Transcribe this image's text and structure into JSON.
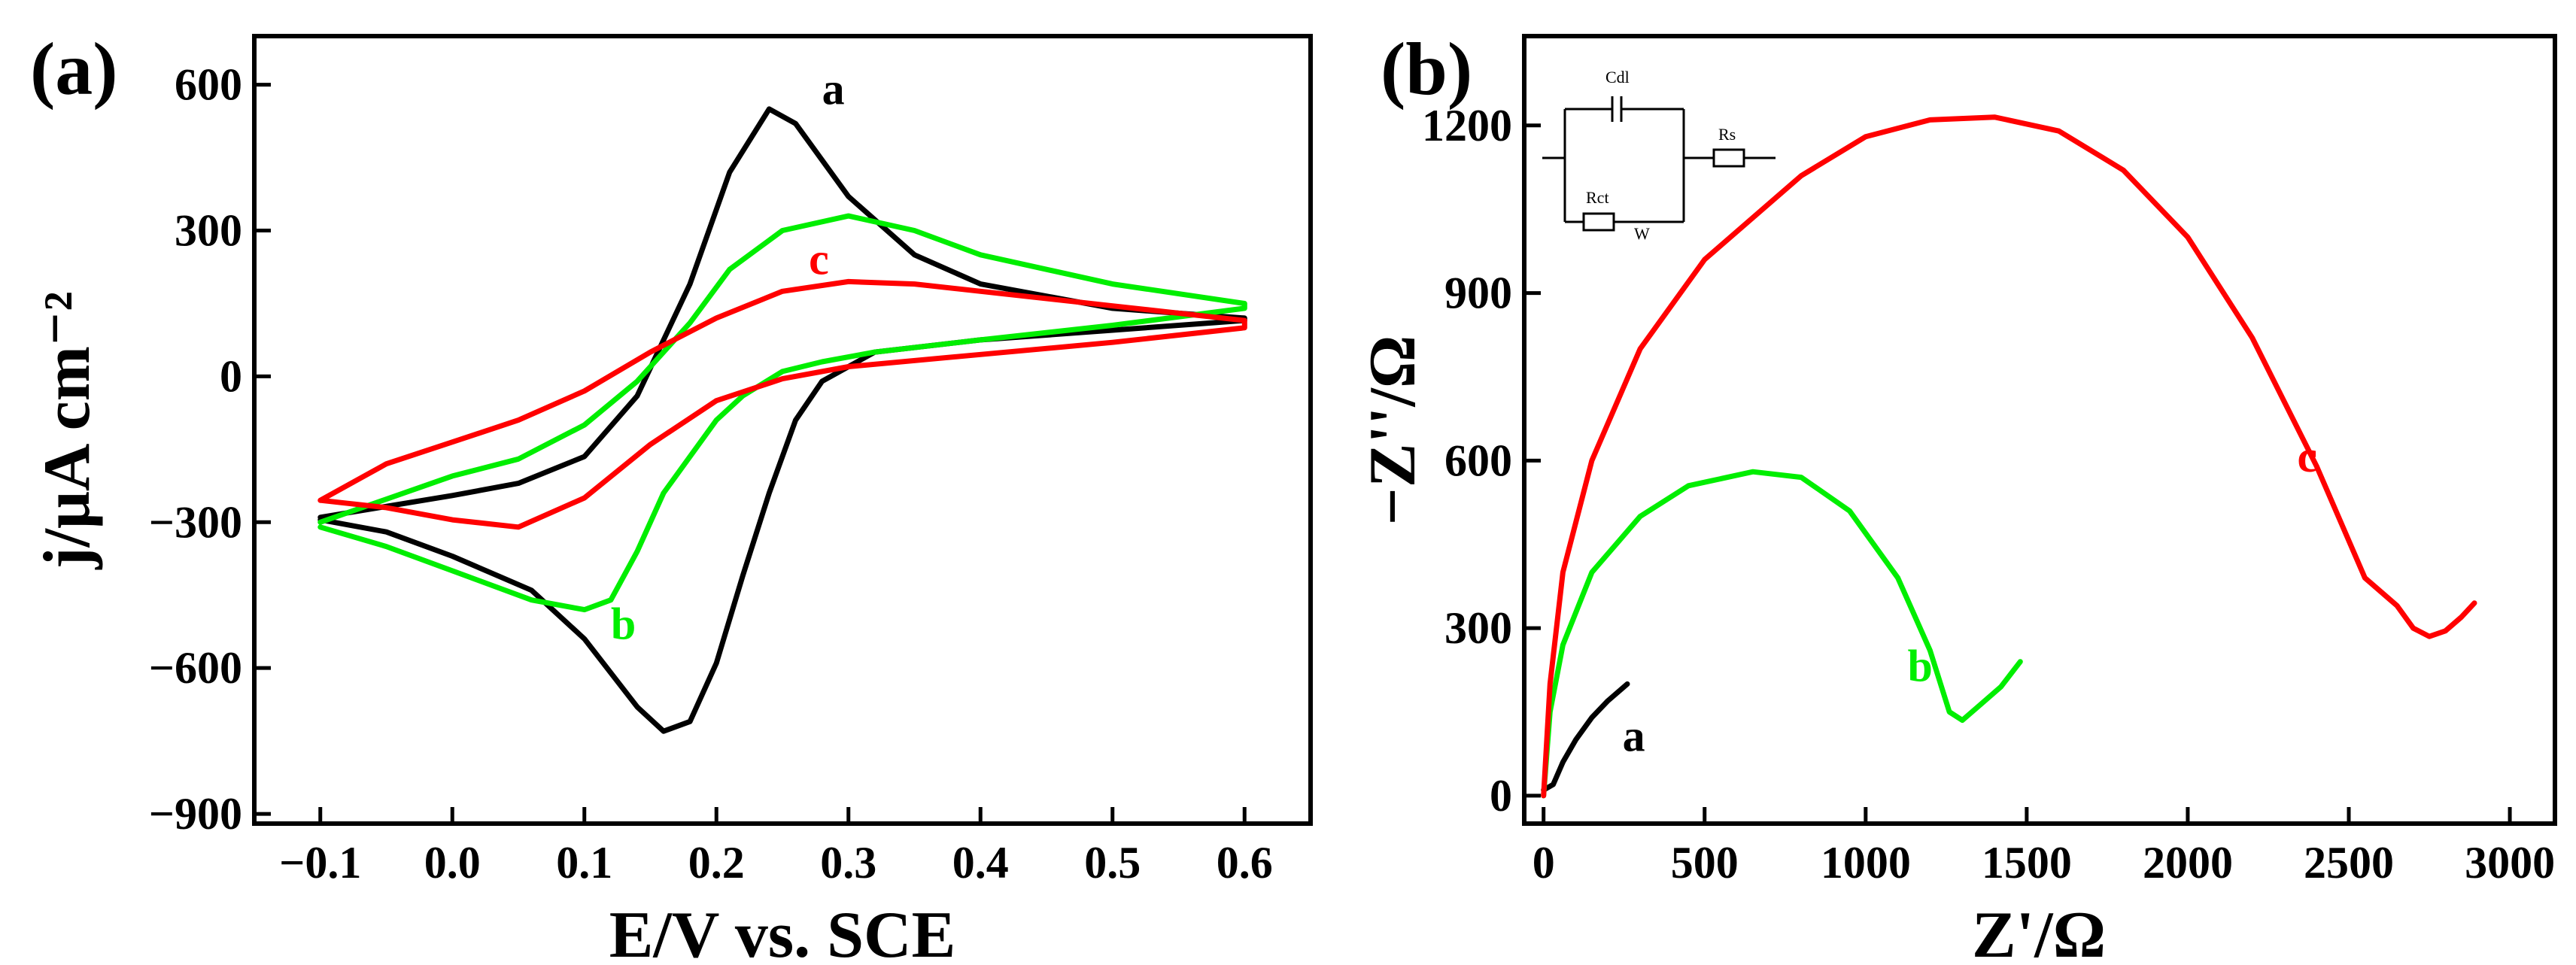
{
  "chart_data": [
    {
      "type": "line",
      "panel_label": "(a)",
      "xlabel": "E/V vs. SCE",
      "ylabel": "j/μA cm⁻²",
      "xlim": [
        -0.15,
        0.65
      ],
      "ylim": [
        -920,
        700
      ],
      "xticks": [
        -0.1,
        0.0,
        0.1,
        0.2,
        0.3,
        0.4,
        0.5,
        0.6
      ],
      "xtick_labels": [
        "−0.1",
        "0.0",
        "0.1",
        "0.2",
        "0.3",
        "0.4",
        "0.5",
        "0.6"
      ],
      "yticks": [
        -900,
        -600,
        -300,
        0,
        300,
        600
      ],
      "ytick_labels": [
        "−900",
        "−600",
        "−300",
        "0",
        "300",
        "600"
      ],
      "grid": false,
      "series": [
        {
          "name": "a",
          "color": "#000000",
          "label_at": [
            0.28,
            560
          ],
          "x": [
            -0.1,
            0.0,
            0.05,
            0.1,
            0.14,
            0.18,
            0.21,
            0.24,
            0.26,
            0.3,
            0.35,
            0.4,
            0.5,
            0.6,
            0.6,
            0.5,
            0.4,
            0.32,
            0.28,
            0.26,
            0.24,
            0.22,
            0.2,
            0.18,
            0.16,
            0.14,
            0.12,
            0.1,
            0.06,
            0.0,
            -0.05,
            -0.1
          ],
          "y": [
            -290,
            -245,
            -220,
            -165,
            -40,
            190,
            420,
            550,
            520,
            370,
            250,
            190,
            140,
            120,
            115,
            95,
            75,
            50,
            -10,
            -90,
            -240,
            -410,
            -590,
            -710,
            -730,
            -680,
            -610,
            -540,
            -440,
            -370,
            -320,
            -295
          ]
        },
        {
          "name": "b",
          "color": "#00ee00",
          "label_at": [
            0.12,
            -540
          ],
          "x": [
            -0.1,
            0.0,
            0.05,
            0.1,
            0.14,
            0.18,
            0.21,
            0.25,
            0.3,
            0.35,
            0.4,
            0.5,
            0.6,
            0.6,
            0.5,
            0.4,
            0.32,
            0.28,
            0.25,
            0.22,
            0.2,
            0.16,
            0.14,
            0.12,
            0.1,
            0.06,
            0.0,
            -0.05,
            -0.1
          ],
          "y": [
            -300,
            -205,
            -170,
            -100,
            -10,
            110,
            220,
            300,
            330,
            300,
            250,
            190,
            150,
            140,
            105,
            75,
            50,
            30,
            10,
            -40,
            -90,
            -240,
            -360,
            -460,
            -480,
            -460,
            -400,
            -350,
            -310
          ]
        },
        {
          "name": "c",
          "color": "#ff0000",
          "label_at": [
            0.27,
            210
          ],
          "x": [
            -0.1,
            -0.05,
            0.0,
            0.05,
            0.1,
            0.15,
            0.2,
            0.25,
            0.3,
            0.35,
            0.4,
            0.5,
            0.6,
            0.6,
            0.5,
            0.4,
            0.3,
            0.25,
            0.2,
            0.15,
            0.1,
            0.05,
            0.0,
            -0.05,
            -0.1
          ],
          "y": [
            -255,
            -180,
            -135,
            -90,
            -30,
            50,
            120,
            175,
            195,
            190,
            175,
            145,
            115,
            100,
            70,
            45,
            20,
            -5,
            -50,
            -140,
            -250,
            -310,
            -295,
            -270,
            -255
          ]
        }
      ]
    },
    {
      "type": "line",
      "panel_label": "(b)",
      "xlabel": "Z'/Ω",
      "ylabel": "−Z''/Ω",
      "xlim": [
        -60,
        3140
      ],
      "ylim": [
        -50,
        1360
      ],
      "xticks": [
        0,
        500,
        1000,
        1500,
        2000,
        2500,
        3000
      ],
      "xtick_labels": [
        "0",
        "500",
        "1000",
        "1500",
        "2000",
        "2500",
        "3000"
      ],
      "yticks": [
        0,
        300,
        600,
        900,
        1200
      ],
      "ytick_labels": [
        "0",
        "300",
        "600",
        "900",
        "1200"
      ],
      "grid": false,
      "inset": {
        "type": "equivalent-circuit",
        "labels": [
          "Cdl",
          "Rs",
          "Rct",
          "W"
        ]
      },
      "series": [
        {
          "name": "a",
          "color": "#000000",
          "label_at": [
            245,
            80
          ],
          "x": [
            0,
            30,
            60,
            100,
            150,
            200,
            260
          ],
          "y": [
            10,
            20,
            60,
            100,
            140,
            170,
            200
          ]
        },
        {
          "name": "b",
          "color": "#00ee00",
          "label_at": [
            1130,
            205
          ],
          "x": [
            0,
            20,
            60,
            150,
            300,
            450,
            650,
            800,
            950,
            1100,
            1200,
            1260,
            1300,
            1350,
            1420,
            1480
          ],
          "y": [
            0,
            150,
            270,
            400,
            500,
            555,
            580,
            570,
            510,
            390,
            260,
            150,
            135,
            160,
            195,
            240
          ]
        },
        {
          "name": "c",
          "color": "#ff0000",
          "label_at": [
            2340,
            580
          ],
          "x": [
            0,
            20,
            60,
            150,
            300,
            500,
            800,
            1000,
            1200,
            1400,
            1600,
            1800,
            2000,
            2200,
            2400,
            2550,
            2650,
            2700,
            2750,
            2800,
            2850,
            2890
          ],
          "y": [
            0,
            200,
            400,
            600,
            800,
            960,
            1110,
            1180,
            1210,
            1215,
            1190,
            1120,
            1000,
            820,
            590,
            390,
            340,
            300,
            285,
            295,
            320,
            345
          ]
        }
      ]
    }
  ]
}
